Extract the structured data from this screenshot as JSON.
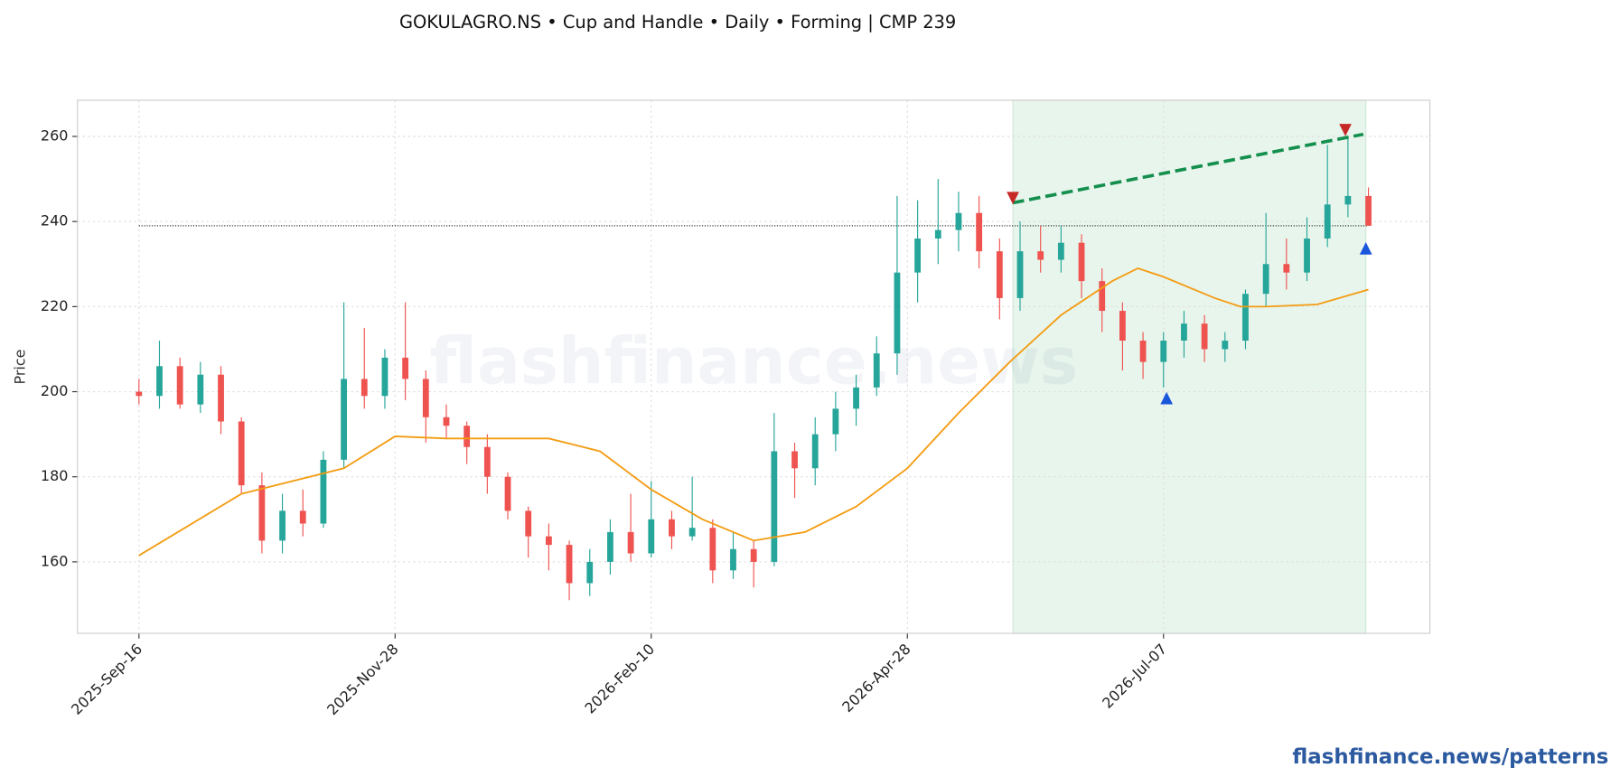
{
  "chart_data": {
    "type": "candlestick",
    "title": "GOKULAGRO.NS  •  Cup and Handle  •  Daily  •  Forming  |  CMP 239",
    "y_label": "Price",
    "watermark": "flashfinance.news",
    "footer": "flashfinance.news/patterns",
    "up_color": "#26a69a",
    "down_color": "#ef5350",
    "xlim": [
      -12,
      252
    ],
    "ylim": [
      143.2,
      268.5
    ],
    "xticks": [
      {
        "value": 0,
        "label": "2025-Sep-16"
      },
      {
        "value": 50,
        "label": "2025-Nov-28"
      },
      {
        "value": 100,
        "label": "2026-Feb-10"
      },
      {
        "value": 150,
        "label": "2026-Apr-28"
      },
      {
        "value": 200,
        "label": "2026-Jul-07"
      }
    ],
    "yticks": [
      160,
      180,
      200,
      220,
      240,
      260
    ],
    "grid": true,
    "x": [
      0,
      4,
      8,
      12,
      16,
      20,
      24,
      28,
      32,
      36,
      40,
      44,
      48,
      52,
      56,
      60,
      64,
      68,
      72,
      76,
      80,
      84,
      88,
      92,
      96,
      100,
      104,
      108,
      112,
      116,
      120,
      124,
      128,
      132,
      136,
      140,
      144,
      148,
      152,
      156,
      160,
      164,
      168,
      172,
      176,
      180,
      184,
      188,
      192,
      196,
      200,
      204,
      208,
      212,
      216,
      220,
      224,
      228,
      232,
      236,
      240
    ],
    "open": [
      200,
      199,
      206,
      197,
      204,
      193,
      178,
      165,
      172,
      169,
      184,
      203,
      199,
      208,
      203,
      194,
      192,
      187,
      180,
      172,
      166,
      164,
      155,
      160,
      167,
      162,
      170,
      166,
      168,
      158,
      163,
      160,
      186,
      182,
      190,
      196,
      201,
      209,
      228,
      236,
      238,
      242,
      233,
      222,
      233,
      231,
      235,
      226,
      219,
      212,
      207,
      212,
      216,
      210,
      212,
      223,
      230,
      228,
      236,
      244,
      246
    ],
    "high": [
      203,
      212,
      208,
      207,
      206,
      194,
      181,
      176,
      177,
      186,
      221,
      215,
      210,
      221,
      205,
      197,
      193,
      190,
      181,
      173,
      169,
      165,
      163,
      170,
      176,
      179,
      172,
      180,
      170,
      167,
      165,
      195,
      188,
      194,
      200,
      204,
      213,
      246,
      245,
      250,
      247,
      246,
      236,
      240,
      239,
      239,
      237,
      229,
      221,
      214,
      214,
      219,
      218,
      214,
      224,
      242,
      236,
      241,
      258,
      260,
      248
    ],
    "low": [
      197,
      196,
      196,
      195,
      190,
      176,
      162,
      162,
      166,
      168,
      182,
      196,
      196,
      198,
      188,
      189,
      183,
      176,
      170,
      161,
      158,
      151,
      152,
      157,
      160,
      161,
      163,
      165,
      155,
      156,
      154,
      159,
      175,
      178,
      186,
      192,
      199,
      204,
      221,
      230,
      233,
      229,
      217,
      219,
      228,
      228,
      222,
      214,
      205,
      203,
      201,
      208,
      207,
      207,
      210,
      220,
      224,
      226,
      234,
      241,
      239
    ],
    "close": [
      199,
      206,
      197,
      204,
      193,
      178,
      165,
      172,
      169,
      184,
      203,
      199,
      208,
      203,
      194,
      192,
      187,
      180,
      172,
      166,
      164,
      155,
      160,
      167,
      162,
      170,
      166,
      168,
      158,
      163,
      160,
      186,
      182,
      190,
      196,
      201,
      209,
      228,
      236,
      238,
      242,
      233,
      222,
      233,
      231,
      235,
      226,
      219,
      212,
      207,
      212,
      216,
      210,
      212,
      223,
      230,
      228,
      236,
      244,
      246,
      239
    ],
    "ma": {
      "color": "#f39c12",
      "x": [
        0,
        20,
        40,
        50,
        60,
        80,
        90,
        100,
        110,
        120,
        130,
        140,
        150,
        160,
        170,
        180,
        190,
        195,
        200,
        210,
        215,
        220,
        230,
        240
      ],
      "values": [
        161.5,
        176,
        182,
        189.5,
        189,
        189,
        186,
        177,
        170,
        165,
        167,
        173,
        182,
        195,
        207,
        218,
        226,
        229,
        227,
        222,
        220,
        220,
        220.5,
        224
      ]
    },
    "cmp_line": {
      "value": 239,
      "color": "#333333"
    },
    "highlight": {
      "x": [
        170.6,
        239.5
      ],
      "color": "#e8f5ec"
    },
    "trendline": {
      "x": [
        170.6,
        239
      ],
      "y": [
        244.4,
        260.5
      ],
      "color": "#148f4e"
    },
    "markers": [
      {
        "x": 170.6,
        "y": 245.5,
        "shape": "down",
        "color": "#c62828"
      },
      {
        "x": 235.5,
        "y": 261.5,
        "shape": "down",
        "color": "#c62828"
      },
      {
        "x": 200.6,
        "y": 198.5,
        "shape": "up",
        "color": "#1a56db"
      },
      {
        "x": 239.5,
        "y": 233.7,
        "shape": "up",
        "color": "#1a56db"
      }
    ]
  }
}
